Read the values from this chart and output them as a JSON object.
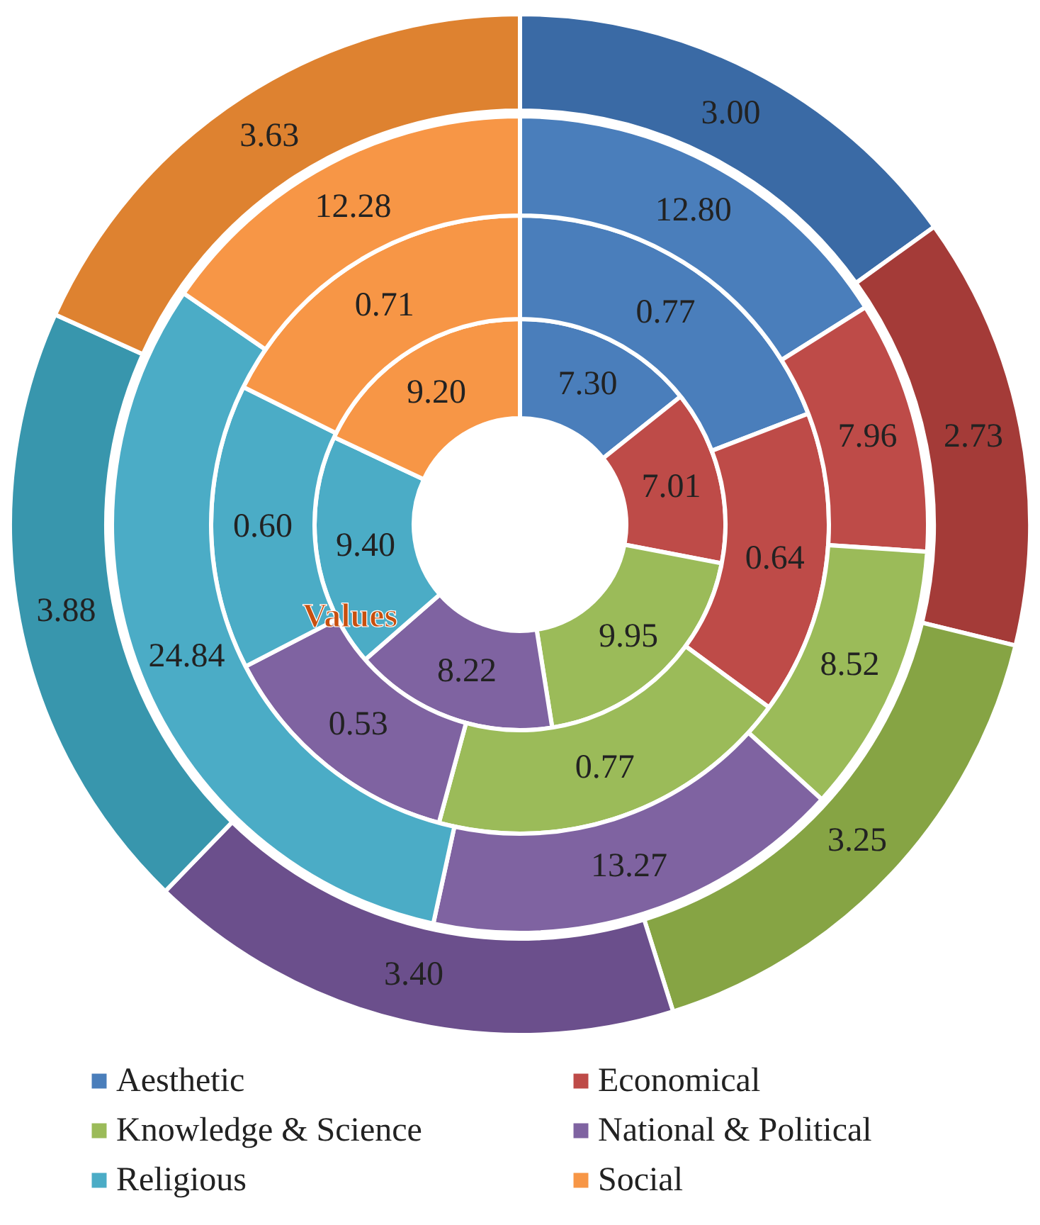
{
  "chart_data": {
    "type": "donut",
    "categories": [
      "Aesthetic",
      "Economical",
      "Knowledge & Science",
      "National & Political",
      "Religious",
      "Social"
    ],
    "series": [
      {
        "values": [
          7.3,
          7.01,
          9.95,
          8.22,
          9.4,
          9.2
        ],
        "value_labels": [
          "7.30",
          "7.01",
          "9.95",
          "8.22",
          "9.40",
          "9.20"
        ],
        "colors": [
          "#4a7ebb",
          "#be4b48",
          "#9bbb59",
          "#7f63a1",
          "#4bacc6",
          "#f79646"
        ]
      },
      {
        "values": [
          0.77,
          0.64,
          0.77,
          0.53,
          0.6,
          0.71
        ],
        "value_labels": [
          "0.77",
          "0.64",
          "0.77",
          "0.53",
          "0.60",
          "0.71"
        ],
        "colors": [
          "#4a7ebb",
          "#be4b48",
          "#9bbb59",
          "#7f63a1",
          "#4bacc6",
          "#f79646"
        ]
      },
      {
        "values": [
          12.8,
          7.96,
          8.52,
          13.27,
          24.84,
          12.28
        ],
        "value_labels": [
          "12.80",
          "7.96",
          "8.52",
          "13.27",
          "24.84",
          "12.28"
        ],
        "colors": [
          "#4a7ebb",
          "#be4b48",
          "#9bbb59",
          "#7f63a1",
          "#4bacc6",
          "#f79646"
        ]
      },
      {
        "values": [
          3.0,
          2.73,
          3.25,
          3.4,
          3.88,
          3.63
        ],
        "value_labels": [
          "3.00",
          "2.73",
          "3.25",
          "3.40",
          "3.88",
          "3.63"
        ],
        "colors": [
          "#3a6aa5",
          "#a43b38",
          "#86a444",
          "#6b4f8c",
          "#3896ad",
          "#de8230"
        ]
      }
    ],
    "legend": "bottom",
    "annotations": [
      "Values"
    ]
  }
}
